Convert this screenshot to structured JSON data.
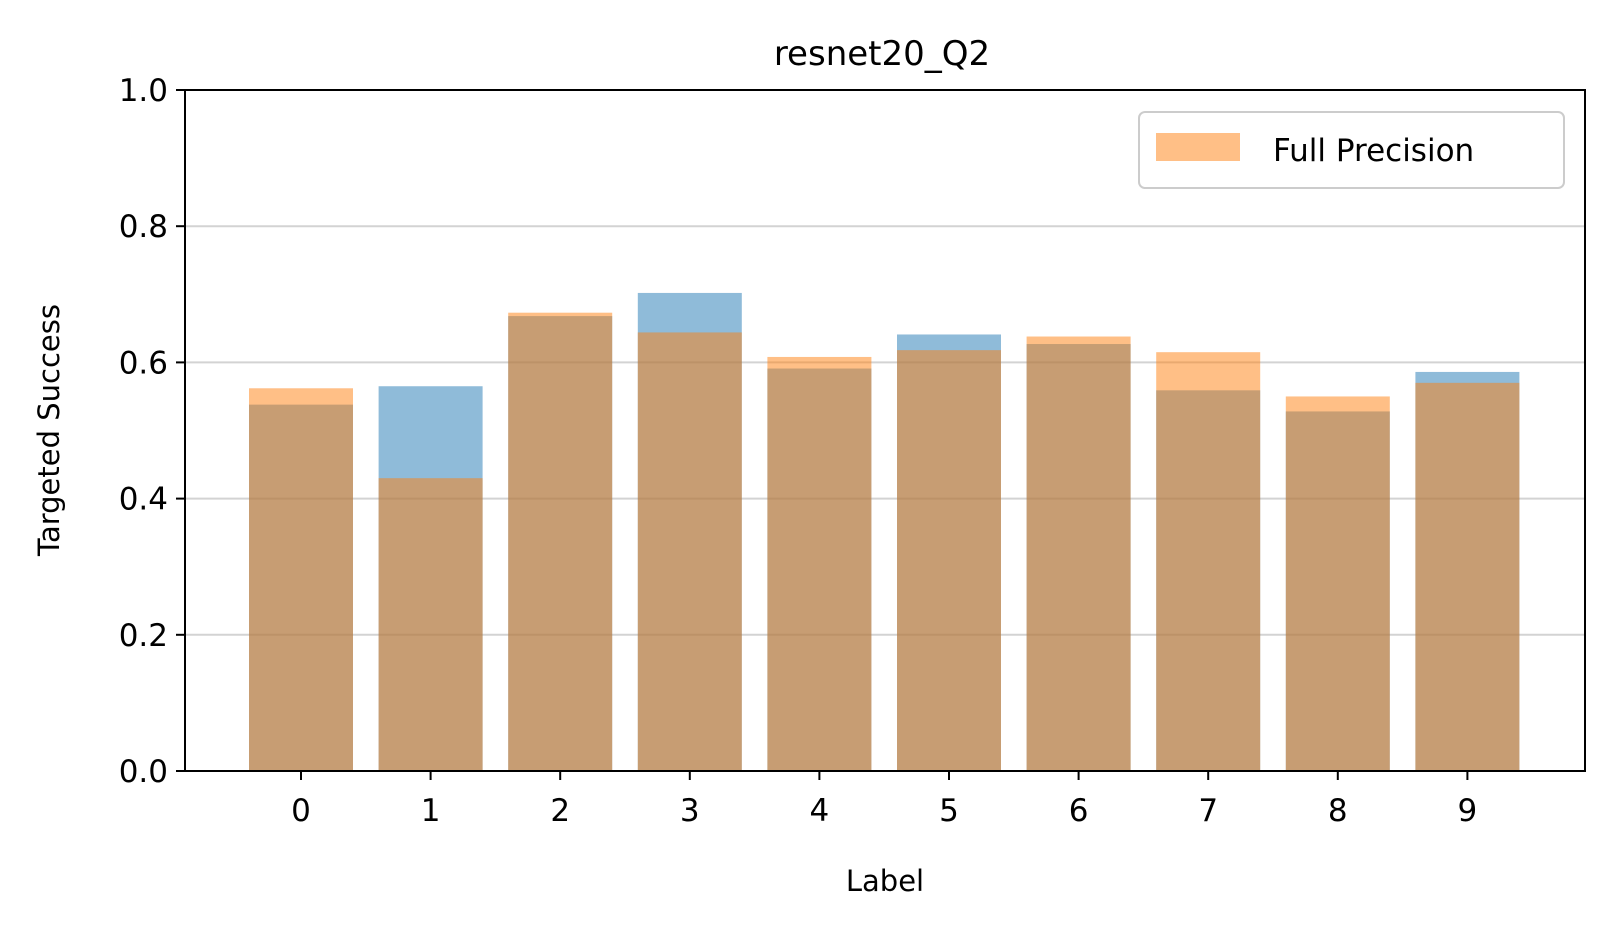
{
  "chart_data": {
    "type": "bar",
    "title": "resnet20_Q2",
    "xlabel": "Label",
    "ylabel": "Targeted Success",
    "categories": [
      "0",
      "1",
      "2",
      "3",
      "4",
      "5",
      "6",
      "7",
      "8",
      "9"
    ],
    "ylim": [
      0,
      1.0
    ],
    "yticks": [
      "0.0",
      "0.2",
      "0.4",
      "0.6",
      "0.8",
      "1.0"
    ],
    "grid": "horizontal",
    "legend_position": "top-right",
    "series": [
      {
        "color": "#1f77b4",
        "opacity": 0.5,
        "values": [
          0.538,
          0.565,
          0.668,
          0.702,
          0.591,
          0.641,
          0.627,
          0.559,
          0.528,
          0.586
        ]
      },
      {
        "name": "Full Precision",
        "color": "#ff7f0e",
        "opacity": 0.5,
        "values": [
          0.562,
          0.43,
          0.673,
          0.644,
          0.608,
          0.618,
          0.638,
          0.615,
          0.55,
          0.57
        ]
      }
    ]
  }
}
